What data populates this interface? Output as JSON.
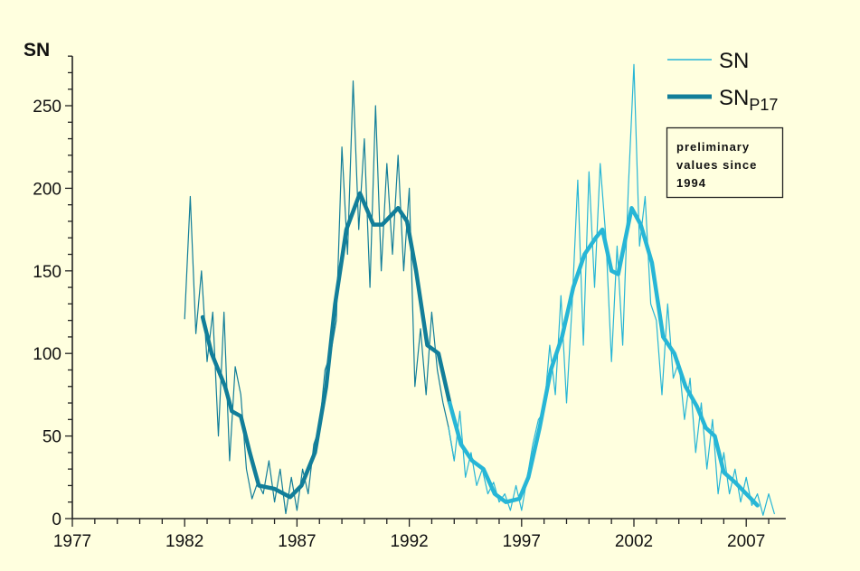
{
  "chart_data": {
    "type": "line",
    "title": "",
    "ylabel": "SN",
    "xlabel": "",
    "xlim": [
      1977,
      2009
    ],
    "ylim": [
      0,
      290
    ],
    "x_ticks": [
      "1977",
      "1982",
      "1987",
      "1992",
      "1997",
      "2002",
      "2007"
    ],
    "y_ticks": [
      "0",
      "50",
      "100",
      "150",
      "200",
      "250"
    ],
    "grid": false,
    "legend_position": "top-right",
    "colors": {
      "background": "#ffffdf",
      "early": "#127e99",
      "late": "#27b6d6"
    },
    "annotation": [
      "preliminary",
      "values since",
      "1994"
    ],
    "preliminary_since": 1994,
    "series": [
      {
        "name": "SN",
        "name_sub": "",
        "style": "thin",
        "x": [
          1982.0,
          1982.25,
          1982.5,
          1982.75,
          1983.0,
          1983.25,
          1983.5,
          1983.75,
          1984.0,
          1984.25,
          1984.5,
          1984.75,
          1985.0,
          1985.25,
          1985.5,
          1985.75,
          1986.0,
          1986.25,
          1986.5,
          1986.75,
          1987.0,
          1987.25,
          1987.5,
          1987.75,
          1988.0,
          1988.25,
          1988.5,
          1988.75,
          1989.0,
          1989.25,
          1989.5,
          1989.75,
          1990.0,
          1990.25,
          1990.5,
          1990.75,
          1991.0,
          1991.25,
          1991.5,
          1991.75,
          1992.0,
          1992.25,
          1992.5,
          1992.75,
          1993.0,
          1993.25,
          1993.5,
          1993.75,
          1994.0,
          1994.25,
          1994.5,
          1994.75,
          1995.0,
          1995.25,
          1995.5,
          1995.75,
          1996.0,
          1996.25,
          1996.5,
          1996.75,
          1997.0,
          1997.25,
          1997.5,
          1997.75,
          1998.0,
          1998.25,
          1998.5,
          1998.75,
          1999.0,
          1999.25,
          1999.5,
          1999.75,
          2000.0,
          2000.25,
          2000.5,
          2000.75,
          2001.0,
          2001.25,
          2001.5,
          2001.75,
          2002.0,
          2002.25,
          2002.5,
          2002.75,
          2003.0,
          2003.25,
          2003.5,
          2003.75,
          2004.0,
          2004.25,
          2004.5,
          2004.75,
          2005.0,
          2005.25,
          2005.5,
          2005.75,
          2006.0,
          2006.25,
          2006.5,
          2006.75,
          2007.0,
          2007.25,
          2007.5,
          2007.75,
          2008.0,
          2008.25
        ],
        "y": [
          121,
          195,
          112,
          150,
          95,
          125,
          50,
          125,
          35,
          92,
          75,
          30,
          12,
          22,
          15,
          35,
          10,
          30,
          3,
          25,
          5,
          30,
          15,
          45,
          55,
          90,
          100,
          120,
          225,
          160,
          265,
          175,
          230,
          140,
          250,
          150,
          215,
          160,
          220,
          150,
          200,
          80,
          115,
          75,
          125,
          90,
          70,
          55,
          35,
          65,
          25,
          40,
          20,
          30,
          15,
          22,
          10,
          15,
          5,
          20,
          5,
          25,
          45,
          60,
          65,
          105,
          75,
          135,
          70,
          130,
          205,
          105,
          210,
          140,
          215,
          170,
          95,
          165,
          105,
          200,
          275,
          165,
          195,
          130,
          120,
          75,
          130,
          85,
          95,
          60,
          85,
          40,
          70,
          30,
          60,
          15,
          40,
          15,
          30,
          10,
          25,
          8,
          15,
          2,
          15,
          3
        ]
      },
      {
        "name": "SN",
        "name_sub": "P17",
        "style": "thick",
        "x": [
          1982.8,
          1983.2,
          1983.8,
          1984.1,
          1984.5,
          1984.9,
          1985.3,
          1986.0,
          1986.7,
          1987.2,
          1987.8,
          1988.3,
          1988.7,
          1989.2,
          1989.8,
          1990.4,
          1990.8,
          1991.5,
          1991.9,
          1992.3,
          1992.8,
          1993.3,
          1993.8,
          1994.3,
          1994.8,
          1995.3,
          1995.8,
          1996.3,
          1996.9,
          1997.3,
          1997.8,
          1998.3,
          1998.8,
          1999.3,
          1999.8,
          2000.3,
          2000.6,
          2001.0,
          2001.3,
          2001.9,
          2002.3,
          2002.8,
          2003.3,
          2003.8,
          2004.3,
          2004.8,
          2005.2,
          2005.6,
          2006.0,
          2006.5,
          2007.0,
          2007.5
        ],
        "y": [
          122,
          100,
          80,
          65,
          62,
          40,
          20,
          18,
          13,
          20,
          40,
          80,
          130,
          175,
          197,
          178,
          178,
          188,
          180,
          150,
          105,
          100,
          70,
          45,
          35,
          30,
          15,
          10,
          12,
          25,
          55,
          90,
          110,
          140,
          160,
          170,
          175,
          150,
          148,
          188,
          178,
          155,
          110,
          100,
          80,
          68,
          55,
          50,
          28,
          22,
          15,
          8
        ]
      }
    ]
  }
}
